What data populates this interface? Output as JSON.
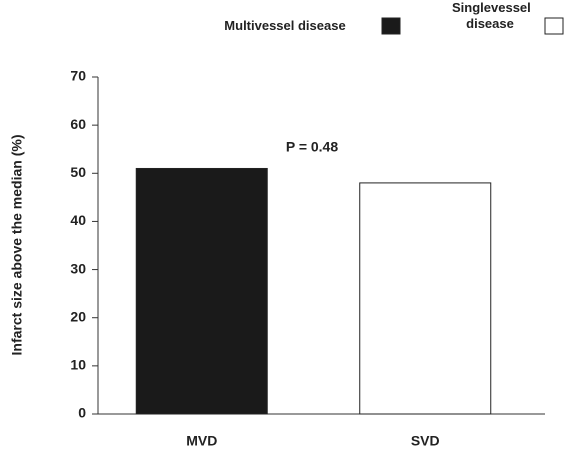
{
  "chart_data": {
    "type": "bar",
    "y_label": "Infarct size above the median (%)",
    "annotation": "P = 0.48",
    "categories": [
      "MVD",
      "SVD"
    ],
    "series": [
      {
        "name": "Multivessel disease",
        "color": "#1a1a1a",
        "values": [
          51,
          null
        ]
      },
      {
        "name": "Singlevessel disease",
        "color": "#ffffff",
        "values": [
          null,
          48
        ]
      }
    ],
    "ylim": [
      0,
      70
    ],
    "yticks": [
      0,
      10,
      20,
      30,
      40,
      50,
      60,
      70
    ]
  }
}
